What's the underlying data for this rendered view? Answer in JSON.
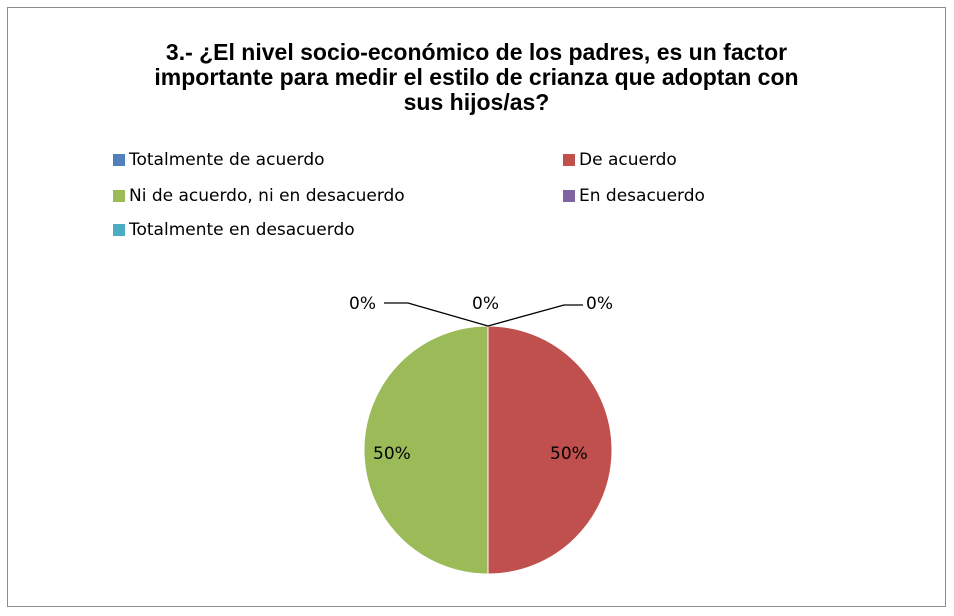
{
  "chart_data": {
    "type": "pie",
    "title_lines": [
      "3.- ¿El nivel socio-económico de los padres, es un factor",
      "importante para medir el estilo de crianza que adoptan con",
      "sus  hijos/as?"
    ],
    "legend_position": "top",
    "slices": [
      {
        "name": "Totalmente de acuerdo",
        "value": 0,
        "label": "0%",
        "color": "#4F81BD"
      },
      {
        "name": "De acuerdo",
        "value": 50,
        "label": "50%",
        "color": "#C0504D"
      },
      {
        "name": "Ni de acuerdo, ni en desacuerdo",
        "value": 50,
        "label": "50%",
        "color": "#9BBB59"
      },
      {
        "name": "En desacuerdo",
        "value": 0,
        "label": "0%",
        "color": "#8064A2"
      },
      {
        "name": "Totalmente en desacuerdo",
        "value": 0,
        "label": "0%",
        "color": "#4BACC6"
      }
    ]
  }
}
